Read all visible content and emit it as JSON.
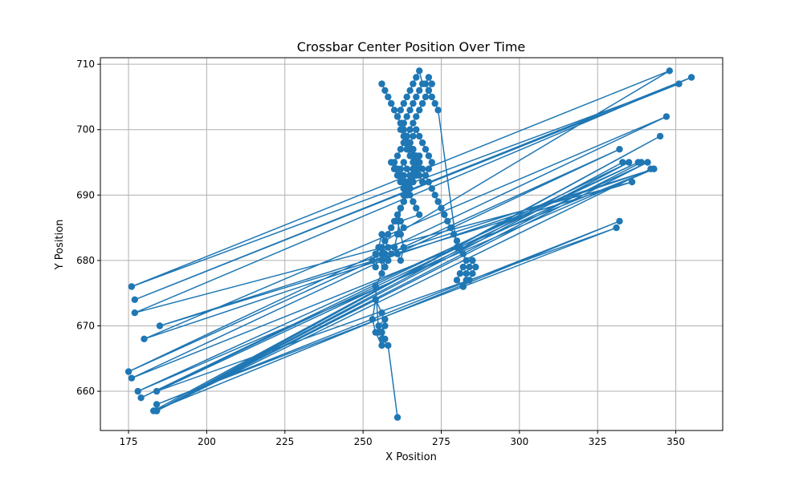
{
  "chart_data": {
    "type": "line",
    "title": "Crossbar Center Position Over Time",
    "xlabel": "X Position",
    "ylabel": "Y Position",
    "xlim": [
      166,
      365
    ],
    "ylim": [
      654,
      711
    ],
    "grid": true,
    "marker": "circle",
    "x_ticks": [
      175,
      200,
      225,
      250,
      275,
      300,
      325,
      350
    ],
    "y_ticks": [
      660,
      670,
      680,
      690,
      700,
      710
    ],
    "colors": {
      "series": "#1f77b4",
      "grid": "#b0b0b0",
      "axis": "#000000"
    },
    "series": [
      {
        "x": [
          261,
          258,
          256,
          257,
          255,
          256,
          257,
          256,
          254,
          253,
          254,
          256,
          257,
          255,
          254,
          256,
          256,
          256,
          257,
          258,
          257,
          256,
          255,
          254,
          253,
          254,
          255,
          256,
          257,
          258,
          259,
          258,
          257,
          256,
          257,
          258,
          259,
          260,
          261,
          262,
          261,
          260,
          261,
          262,
          263,
          262,
          261,
          262,
          263,
          264,
          265,
          264,
          263,
          262,
          263,
          264,
          265,
          266,
          265,
          264,
          263,
          264,
          265,
          266,
          267,
          268,
          267,
          266,
          265,
          264,
          263,
          264,
          265,
          266,
          267,
          268,
          267,
          266,
          265,
          264,
          263,
          262,
          261,
          262,
          263,
          264,
          265,
          266,
          267,
          268,
          269,
          268,
          267,
          266,
          265,
          264,
          263,
          262,
          263,
          264,
          265,
          266,
          267,
          266,
          265,
          264,
          263,
          263,
          264,
          265,
          266,
          267,
          268,
          267,
          266,
          265,
          264,
          265,
          266,
          267,
          268,
          269,
          270,
          271,
          272,
          271,
          270,
          271,
          272,
          273,
          274,
          280,
          282,
          283,
          282,
          281,
          280,
          282,
          284,
          285,
          286,
          285,
          284,
          283,
          283,
          282
        ],
        "y": [
          656,
          667,
          668,
          671,
          670,
          669,
          668,
          667,
          669,
          671,
          674,
          672,
          670,
          669,
          676,
          678,
          680,
          682,
          681,
          680,
          679,
          681,
          682,
          681,
          680,
          679,
          682,
          684,
          683,
          682,
          681,
          680,
          679,
          682,
          683,
          684,
          685,
          686,
          687,
          688,
          684,
          682,
          681,
          680,
          682,
          684,
          686,
          688,
          689,
          690,
          691,
          692,
          693,
          694,
          695,
          694,
          693,
          692,
          691,
          690,
          689,
          690,
          691,
          692,
          693,
          694,
          695,
          694,
          693,
          692,
          690,
          691,
          692,
          693,
          694,
          695,
          696,
          697,
          698,
          699,
          700,
          701,
          702,
          703,
          704,
          705,
          706,
          707,
          708,
          709,
          707,
          706,
          705,
          704,
          703,
          702,
          701,
          700,
          699,
          698,
          697,
          696,
          695,
          694,
          693,
          692,
          691,
          690,
          691,
          692,
          693,
          694,
          695,
          696,
          697,
          698,
          699,
          700,
          701,
          702,
          703,
          704,
          705,
          706,
          707,
          708,
          707,
          706,
          705,
          704,
          703,
          682,
          681,
          680,
          679,
          678,
          677,
          676,
          677,
          678,
          679,
          680,
          679,
          678,
          677,
          676
        ]
      },
      {
        "x": [
          259,
          260,
          261,
          262,
          263,
          264,
          260,
          261,
          262,
          263,
          264,
          265,
          266,
          267,
          268,
          264,
          265,
          266,
          267,
          268,
          269,
          270,
          271,
          272,
          271,
          270,
          269,
          268,
          267,
          266,
          265,
          264,
          263,
          262,
          261,
          260,
          261,
          262,
          263,
          264,
          265,
          266,
          267,
          268,
          262,
          263
        ],
        "y": [
          695,
          694,
          693,
          692,
          691,
          690,
          694,
          693,
          692,
          691,
          692,
          693,
          694,
          695,
          696,
          697,
          698,
          699,
          700,
          699,
          698,
          697,
          696,
          695,
          694,
          693,
          692,
          693,
          694,
          695,
          696,
          697,
          698,
          697,
          696,
          695,
          694,
          693,
          692,
          691,
          690,
          689,
          688,
          687,
          686,
          685
        ]
      },
      {
        "x": [
          257,
          348,
          176,
          351,
          177,
          355,
          177,
          336,
          185,
          343,
          180,
          347,
          175,
          332,
          176,
          343,
          178,
          338,
          179,
          335,
          184,
          339,
          184,
          345,
          183,
          332,
          184,
          331,
          184,
          341,
          184,
          342,
          184,
          333
        ],
        "y": [
          683,
          709,
          676,
          707,
          674,
          708,
          672,
          692,
          670,
          694,
          668,
          702,
          663,
          697,
          662,
          694,
          660,
          695,
          659,
          695,
          657,
          695,
          657,
          699,
          657,
          686,
          658,
          685,
          660,
          695,
          657,
          694,
          657,
          695
        ]
      },
      {
        "x": [
          281,
          280,
          279,
          278,
          277,
          276,
          275,
          274,
          273,
          272,
          271,
          270,
          269,
          268,
          267,
          266,
          265,
          264,
          263,
          262,
          261,
          260,
          259,
          258,
          257,
          256
        ],
        "y": [
          682,
          683,
          684,
          685,
          686,
          687,
          688,
          689,
          690,
          691,
          692,
          693,
          694,
          695,
          696,
          697,
          698,
          699,
          700,
          701,
          702,
          703,
          704,
          705,
          706,
          707
        ]
      }
    ]
  }
}
